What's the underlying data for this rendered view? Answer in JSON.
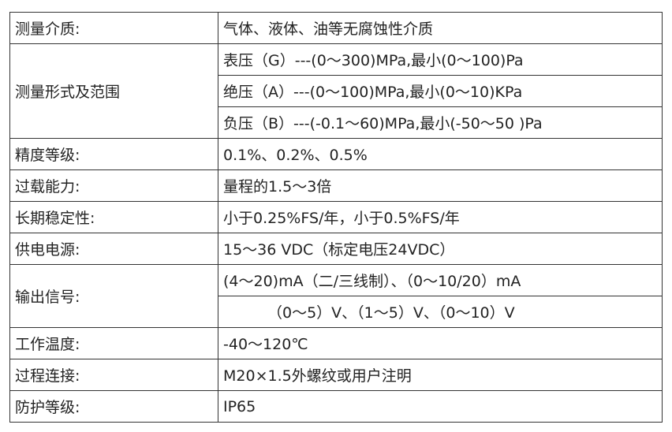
{
  "rows": [
    {
      "label": "测量介质:",
      "values": [
        "气体、液体、油等无腐蚀性介质"
      ]
    },
    {
      "label": "测量形式及范围",
      "values": [
        "表压（G）---(0～300)MPa,最小(0～100)Pa",
        "绝压（A）---(0～100)MPa,最小(0～10)KPa",
        "负压（B）---(-0.1～60)MPa,最小(-50～50 )Pa"
      ]
    },
    {
      "label": "精度等级:",
      "values": [
        "0.1%、0.2%、0.5%"
      ]
    },
    {
      "label": "过载能力:",
      "values": [
        "量程的1.5～3倍"
      ]
    },
    {
      "label": "长期稳定性:",
      "values": [
        "小于0.25%FS/年，小于0.5%FS/年"
      ]
    },
    {
      "label": "供电电源:",
      "values": [
        "15～36 VDC（标定电压24VDC）"
      ]
    },
    {
      "label": "输出信号:",
      "values": [
        "(4～20)mA（二/三线制）、（0～10/20）mA",
        "（0～5）V、（1～5）V、（0～10）V"
      ]
    },
    {
      "label": "工作温度:",
      "values": [
        "-40～120℃"
      ]
    },
    {
      "label": "过程连接:",
      "values": [
        "M20×1.5外螺纹或用户注明"
      ]
    },
    {
      "label": "防护等级:",
      "values": [
        "IP65"
      ]
    }
  ]
}
